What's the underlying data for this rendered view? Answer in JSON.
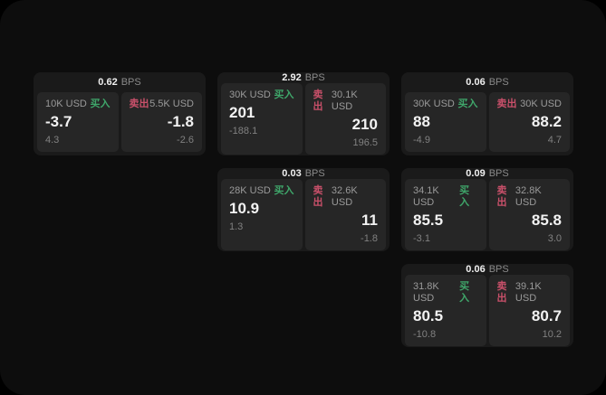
{
  "labels": {
    "bps": "BPS",
    "buy": "买入",
    "sell": "卖出"
  },
  "colors": {
    "page_bg": "#0d0d0d",
    "card_bg": "#1a1a1a",
    "panel_bg": "#262626",
    "buy_green": "#3fa66a",
    "sell_red": "#c9506a"
  },
  "cards": [
    {
      "bps": "0.62",
      "buy": {
        "amount": "10K USD",
        "main": "-3.7",
        "sub": "4.3"
      },
      "sell": {
        "amount": "5.5K USD",
        "main": "-1.8",
        "sub": "-2.6"
      }
    },
    {
      "bps": "2.92",
      "buy": {
        "amount": "30K USD",
        "main": "201",
        "sub": "-188.1"
      },
      "sell": {
        "amount": "30.1K USD",
        "main": "210",
        "sub": "196.5"
      }
    },
    {
      "bps": "0.06",
      "buy": {
        "amount": "30K USD",
        "main": "88",
        "sub": "-4.9"
      },
      "sell": {
        "amount": "30K USD",
        "main": "88.2",
        "sub": "4.7"
      }
    },
    {
      "bps": "0.03",
      "buy": {
        "amount": "28K USD",
        "main": "10.9",
        "sub": "1.3"
      },
      "sell": {
        "amount": "32.6K USD",
        "main": "11",
        "sub": "-1.8"
      }
    },
    {
      "bps": "0.09",
      "buy": {
        "amount": "34.1K USD",
        "main": "85.5",
        "sub": "-3.1"
      },
      "sell": {
        "amount": "32.8K USD",
        "main": "85.8",
        "sub": "3.0"
      }
    },
    {
      "bps": "0.06",
      "buy": {
        "amount": "31.8K USD",
        "main": "80.5",
        "sub": "-10.8"
      },
      "sell": {
        "amount": "39.1K USD",
        "main": "80.7",
        "sub": "10.2"
      }
    }
  ]
}
